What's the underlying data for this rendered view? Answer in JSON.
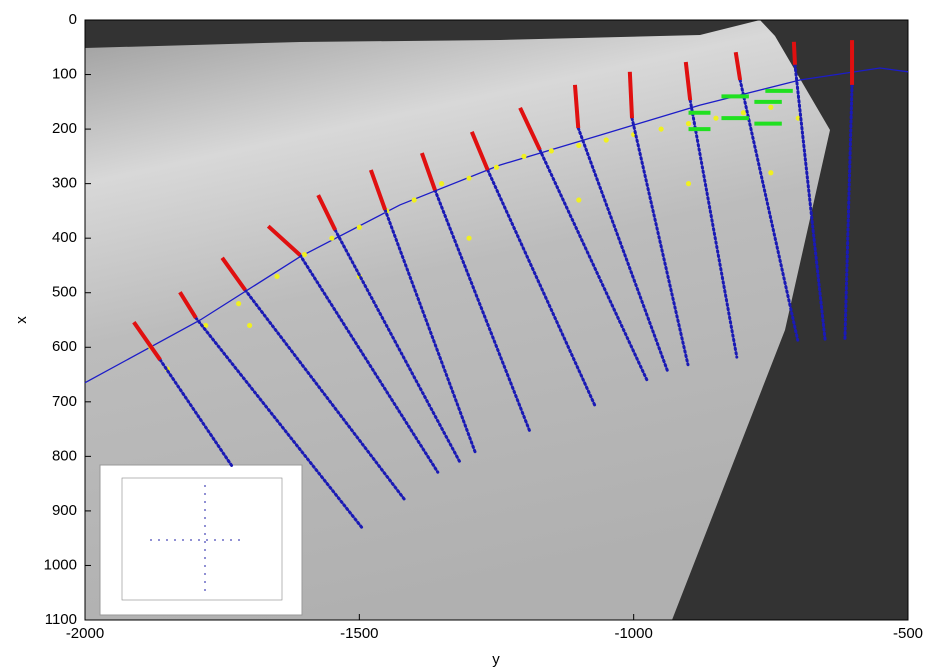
{
  "chart_data": {
    "type": "line",
    "xlabel": "y",
    "ylabel": "x",
    "xlim": [
      -2000,
      -500
    ],
    "xticks": [
      -2000,
      -1500,
      -1000,
      -500
    ],
    "ylim": [
      1100,
      0
    ],
    "yticks": [
      0,
      100,
      200,
      300,
      400,
      500,
      600,
      700,
      800,
      900,
      1000,
      1100
    ],
    "series": [
      {
        "style": "curve",
        "color": "#1c1cc8",
        "x": [
          -2000,
          -1790,
          -1608,
          -1426,
          -1244,
          -1061,
          -879,
          -697,
          -551,
          -500
        ],
        "values": [
          665,
          550,
          434,
          339,
          266,
          211,
          156,
          110,
          88,
          95
        ]
      },
      {
        "style": "scatter",
        "color": "#f0f020",
        "x": [
          -1880,
          -1850,
          -1780,
          -1720,
          -1650,
          -1600,
          -1550,
          -1500,
          -1450,
          -1400,
          -1350,
          -1300,
          -1250,
          -1200,
          -1150,
          -1100,
          -1050,
          -1000,
          -950,
          -900,
          -850,
          -800,
          -750,
          -700,
          -1700,
          -1500,
          -1300,
          -1100,
          -900,
          -750
        ],
        "values": [
          600,
          640,
          560,
          520,
          470,
          430,
          400,
          380,
          350,
          330,
          300,
          290,
          270,
          250,
          240,
          230,
          220,
          210,
          200,
          190,
          180,
          170,
          160,
          180,
          560,
          470,
          400,
          330,
          300,
          280
        ]
      },
      {
        "style": "dotted",
        "color": "#1a1ab4",
        "x": [
          -1863,
          -1730,
          null,
          -1798,
          -1495,
          null,
          -1708,
          -1417,
          null,
          -1608,
          -1357,
          null,
          -1544,
          -1317,
          null,
          -1453,
          -1289,
          null,
          -1362,
          -1189,
          null,
          -1266,
          -1071,
          null,
          -1171,
          -974,
          null,
          -1101,
          -937,
          null,
          -1003,
          -901,
          null,
          -897,
          -812,
          null,
          -806,
          -701,
          null,
          -706,
          -651,
          null,
          -602,
          -615
        ],
        "values": [
          623,
          821,
          null,
          546,
          931,
          null,
          495,
          880,
          null,
          431,
          829,
          null,
          385,
          810,
          null,
          348,
          792,
          null,
          312,
          755,
          null,
          275,
          706,
          null,
          238,
          664,
          null,
          198,
          647,
          null,
          180,
          632,
          null,
          147,
          618,
          null,
          110,
          587,
          null,
          82,
          587,
          null,
          119,
          587
        ]
      },
      {
        "style": "thick",
        "color": "#e01010",
        "x": [
          -1911,
          -1863,
          null,
          -1827,
          -1798,
          null,
          -1750,
          -1708,
          null,
          -1666,
          -1608,
          null,
          -1575,
          -1544,
          null,
          -1479,
          -1453,
          null,
          -1386,
          -1362,
          null,
          -1295,
          -1266,
          null,
          -1207,
          -1171,
          null,
          -1107,
          -1101,
          null,
          -1007,
          -1003,
          null,
          -905,
          -897,
          null,
          -814,
          -806,
          null,
          -708,
          -706,
          null,
          -602,
          -602
        ],
        "values": [
          554,
          623,
          null,
          499,
          546,
          null,
          436,
          495,
          null,
          378,
          431,
          null,
          321,
          385,
          null,
          275,
          348,
          null,
          244,
          312,
          null,
          205,
          275,
          null,
          161,
          238,
          null,
          119,
          198,
          null,
          95,
          180,
          null,
          77,
          147,
          null,
          59,
          110,
          null,
          40,
          82,
          null,
          37,
          119
        ]
      },
      {
        "style": "thick",
        "color": "#20e020",
        "x": [
          -900,
          -860,
          null,
          -900,
          -860,
          null,
          -840,
          -790,
          null,
          -840,
          -790,
          null,
          -780,
          -730,
          null,
          -780,
          -730,
          null,
          -760,
          -710
        ],
        "values": [
          170,
          170,
          null,
          200,
          200,
          null,
          140,
          140,
          null,
          180,
          180,
          null,
          150,
          150,
          null,
          190,
          190,
          null,
          130,
          130
        ]
      }
    ]
  }
}
